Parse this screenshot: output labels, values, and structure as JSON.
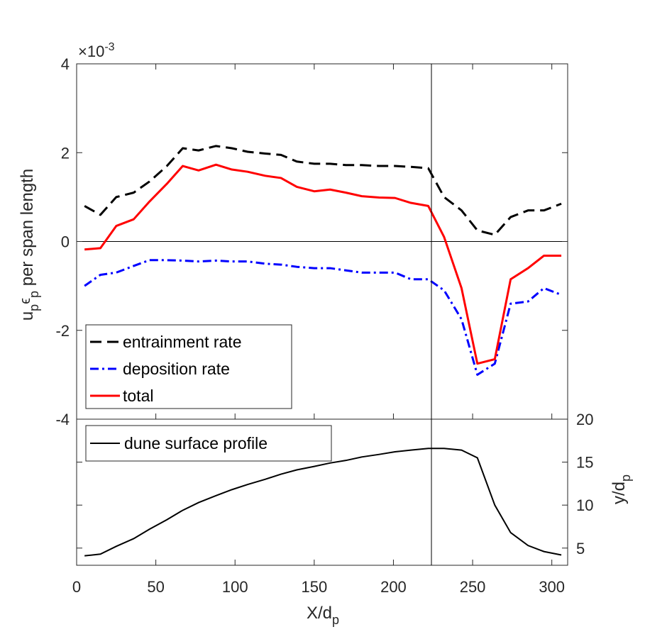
{
  "chart_data": [
    {
      "type": "line",
      "panel": "top",
      "xlabel": "X/d_p",
      "ylabel": "u_p ε_p per span length",
      "y_multiplier": "×10^-3",
      "xlim": [
        0,
        310
      ],
      "ylim": [
        -4,
        4
      ],
      "yticks": [
        -4,
        -2,
        0,
        2,
        4
      ],
      "x": [
        5,
        15,
        25,
        36,
        46,
        57,
        67,
        77,
        88,
        98,
        108,
        119,
        129,
        139,
        150,
        160,
        170,
        180,
        191,
        201,
        211,
        222,
        232,
        243,
        253,
        264,
        274,
        285,
        295,
        306
      ],
      "series": [
        {
          "name": "entrainment rate",
          "color": "#000000",
          "style": "dashed",
          "values": [
            0.8,
            0.6,
            1.0,
            1.1,
            1.35,
            1.7,
            2.1,
            2.05,
            2.15,
            2.1,
            2.02,
            1.98,
            1.95,
            1.8,
            1.75,
            1.75,
            1.72,
            1.72,
            1.7,
            1.7,
            1.68,
            1.65,
            1.0,
            0.7,
            0.25,
            0.15,
            0.55,
            0.7,
            0.7,
            0.85
          ]
        },
        {
          "name": "deposition rate",
          "color": "#0000ff",
          "style": "dashdot",
          "values": [
            -1.0,
            -0.75,
            -0.7,
            -0.55,
            -0.42,
            -0.42,
            -0.43,
            -0.45,
            -0.43,
            -0.45,
            -0.45,
            -0.5,
            -0.52,
            -0.57,
            -0.6,
            -0.6,
            -0.65,
            -0.7,
            -0.7,
            -0.7,
            -0.85,
            -0.85,
            -1.1,
            -1.75,
            -3.0,
            -2.75,
            -1.4,
            -1.35,
            -1.05,
            -1.2
          ]
        },
        {
          "name": "total",
          "color": "#ff0000",
          "style": "solid",
          "values": [
            -0.18,
            -0.15,
            0.35,
            0.5,
            0.9,
            1.3,
            1.7,
            1.6,
            1.73,
            1.62,
            1.57,
            1.48,
            1.43,
            1.23,
            1.13,
            1.17,
            1.1,
            1.02,
            0.99,
            0.98,
            0.87,
            0.8,
            0.1,
            -1.05,
            -2.75,
            -2.65,
            -0.85,
            -0.6,
            -0.32,
            -0.32
          ]
        }
      ],
      "legend": {
        "position": "bottom-left",
        "entries": [
          "entrainment rate",
          "deposition rate",
          "total"
        ]
      },
      "reference_lines": {
        "y": 0,
        "x": 224
      }
    },
    {
      "type": "line",
      "panel": "bottom",
      "xlabel": "X/d_p",
      "ylabel": "y/d_p",
      "xlim": [
        0,
        310
      ],
      "ylim": [
        3,
        20
      ],
      "yticks": [
        5,
        10,
        15,
        20
      ],
      "xticks": [
        0,
        50,
        100,
        150,
        200,
        250,
        300
      ],
      "x": [
        5,
        15,
        25,
        36,
        46,
        57,
        67,
        77,
        88,
        98,
        108,
        119,
        129,
        139,
        150,
        160,
        170,
        180,
        191,
        201,
        211,
        222,
        232,
        243,
        253,
        264,
        274,
        285,
        295,
        306
      ],
      "series": [
        {
          "name": "dune surface profile",
          "color": "#000000",
          "style": "solid",
          "values": [
            4.1,
            4.3,
            5.2,
            6.1,
            7.2,
            8.3,
            9.4,
            10.3,
            11.1,
            11.8,
            12.4,
            13.0,
            13.6,
            14.1,
            14.5,
            14.9,
            15.2,
            15.6,
            15.9,
            16.2,
            16.4,
            16.6,
            16.6,
            16.4,
            15.5,
            10.0,
            6.8,
            5.3,
            4.6,
            4.2
          ]
        }
      ],
      "legend": {
        "position": "top-left",
        "entries": [
          "dune surface profile"
        ]
      },
      "reference_lines": {
        "x": 224
      }
    }
  ],
  "labels": {
    "top_ylabel_main": "u",
    "top_ylabel_sub1": "p",
    "top_ylabel_eps": "ϵ",
    "top_ylabel_sub2": "p",
    "top_ylabel_tail": " per span length",
    "xlabel_main": "X/d",
    "xlabel_sub": "p",
    "right_ylabel_main": "y/d",
    "right_ylabel_sub": "p",
    "sci_times": "×10",
    "sci_exp": "-3",
    "top_ytick_labels": [
      "4",
      "2",
      "0",
      "-2",
      "-4"
    ],
    "bottom_ytick_labels": [
      "20",
      "15",
      "10",
      "5"
    ],
    "xtick_labels": [
      "0",
      "50",
      "100",
      "150",
      "200",
      "250",
      "300"
    ],
    "legend_top": [
      "entrainment rate",
      "deposition rate",
      "total"
    ],
    "legend_bottom": [
      "dune surface profile"
    ]
  }
}
